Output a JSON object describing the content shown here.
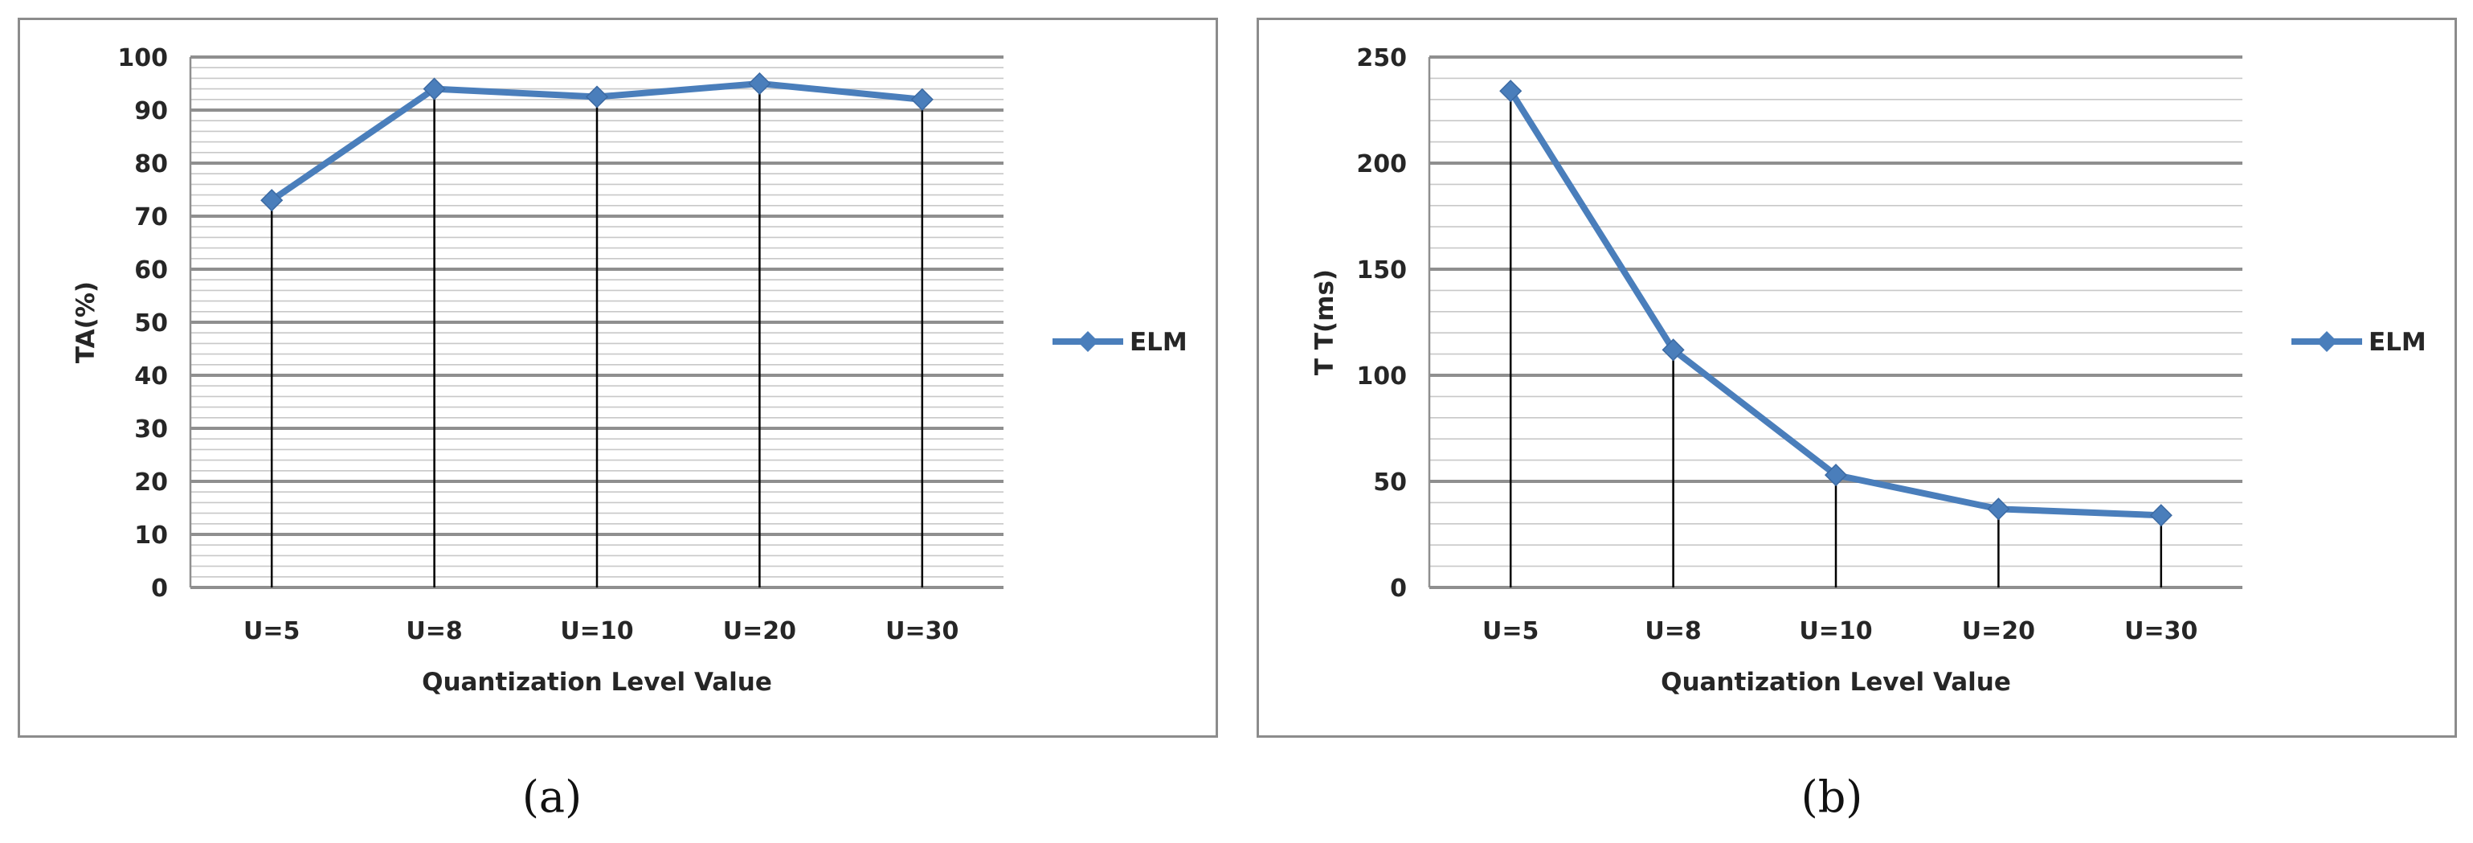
{
  "chart_data": [
    {
      "type": "line",
      "categories": [
        "U=5",
        "U=8",
        "U=10",
        "U=20",
        "U=30"
      ],
      "series": [
        {
          "name": "ELM",
          "values": [
            73,
            94,
            92.5,
            95,
            92
          ]
        }
      ],
      "xlabel": "Quantization Level Value",
      "ylabel": "TA(%)",
      "ylim": [
        0,
        100
      ],
      "yticks": [
        0,
        10,
        20,
        30,
        40,
        50,
        60,
        70,
        80,
        90,
        100
      ],
      "ytick_labels": [
        "0",
        "10",
        "20",
        "30",
        "40",
        "50",
        "60",
        "70",
        "80",
        "90",
        "100"
      ],
      "major_step": 10,
      "minor_step": 2,
      "drop_lines": true,
      "grid": true,
      "legend": "right",
      "color": "#4a7ebb"
    },
    {
      "type": "line",
      "categories": [
        "U=5",
        "U=8",
        "U=10",
        "U=20",
        "U=30"
      ],
      "series": [
        {
          "name": "ELM",
          "values": [
            234,
            112,
            53,
            37,
            34
          ]
        }
      ],
      "xlabel": "Quantization Level Value",
      "ylabel": "T T(ms)",
      "ylim": [
        0,
        250
      ],
      "yticks": [
        0,
        50,
        100,
        150,
        200,
        250
      ],
      "ytick_labels": [
        "0",
        "50",
        "100",
        "150",
        "200",
        "250"
      ],
      "major_step": 50,
      "minor_step": 10,
      "drop_lines": true,
      "grid": true,
      "legend": "right",
      "color": "#4a7ebb"
    }
  ],
  "captions": {
    "a": "(a)",
    "b": "(b)"
  }
}
